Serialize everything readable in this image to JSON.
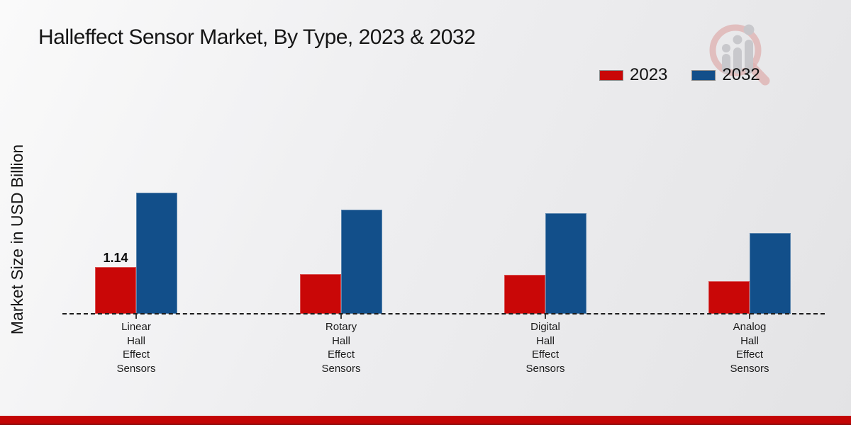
{
  "title": "Halleffect Sensor Market, By Type, 2023 & 2032",
  "ylabel": "Market Size in USD Billion",
  "colors": {
    "series_2023_red": "#c90707",
    "series_2032_blue": "#124f8a",
    "footer_bar_red": "#c30505",
    "baseline_black": "#1b1b1b",
    "watermark_pink": "#dfb3b3",
    "watermark_gray": "#c7c7cb"
  },
  "legend": {
    "items": [
      {
        "label": "2023",
        "color": "#c90707"
      },
      {
        "label": "2032",
        "color": "#124f8a"
      }
    ]
  },
  "watermark": "market-research-magnifier-logo",
  "chart_data": {
    "type": "bar",
    "title": "Halleffect Sensor Market, By Type, 2023 & 2032",
    "xlabel": "",
    "ylabel": "Market Size in USD Billion",
    "categories": [
      [
        "Linear",
        "Hall",
        "Effect",
        "Sensors"
      ],
      [
        "Rotary",
        "Hall",
        "Effect",
        "Sensors"
      ],
      [
        "Digital",
        "Hall",
        "Effect",
        "Sensors"
      ],
      [
        "Analog",
        "Hall",
        "Effect",
        "Sensors"
      ]
    ],
    "series": [
      {
        "name": "2023",
        "color": "#c90707",
        "values": [
          1.14,
          0.97,
          0.95,
          0.79
        ]
      },
      {
        "name": "2032",
        "color": "#124f8a",
        "values": [
          2.95,
          2.54,
          2.44,
          1.97
        ]
      }
    ],
    "data_labels": [
      {
        "series": "2023",
        "category_index": 0,
        "text": "1.14"
      }
    ],
    "ylim": [
      0,
      3.5
    ],
    "grid": false,
    "y_ticks_visible": false,
    "legend_position": "top-right",
    "baseline_style": "dashed"
  }
}
